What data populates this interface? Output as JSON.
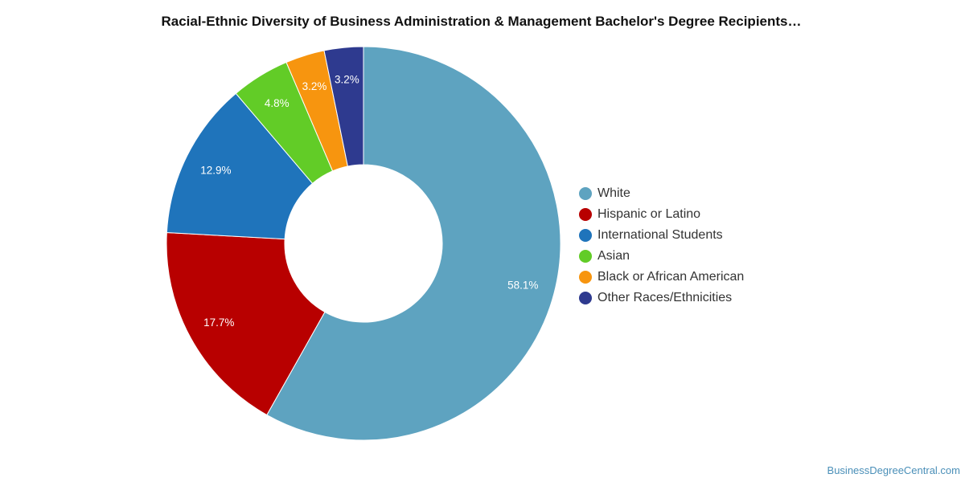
{
  "chart_data": {
    "type": "pie",
    "title": "Racial-Ethnic Diversity of Business Administration & Management Bachelor's Degree Recipients…",
    "donut": true,
    "legend_position": "right",
    "slices": [
      {
        "label": "White",
        "value": 58.1,
        "value_label": "58.1%",
        "color": "#5ea3c0"
      },
      {
        "label": "Hispanic or Latino",
        "value": 17.7,
        "value_label": "17.7%",
        "color": "#b80000"
      },
      {
        "label": "International Students",
        "value": 12.9,
        "value_label": "12.9%",
        "color": "#1f74bb"
      },
      {
        "label": "Asian",
        "value": 4.8,
        "value_label": "4.8%",
        "color": "#62cc27"
      },
      {
        "label": "Black or African American",
        "value": 3.2,
        "value_label": "3.2%",
        "color": "#f7950f"
      },
      {
        "label": "Other Races/Ethnicities",
        "value": 3.2,
        "value_label": "3.2%",
        "color": "#2e3a8f"
      }
    ]
  },
  "credit": "BusinessDegreeCentral.com"
}
